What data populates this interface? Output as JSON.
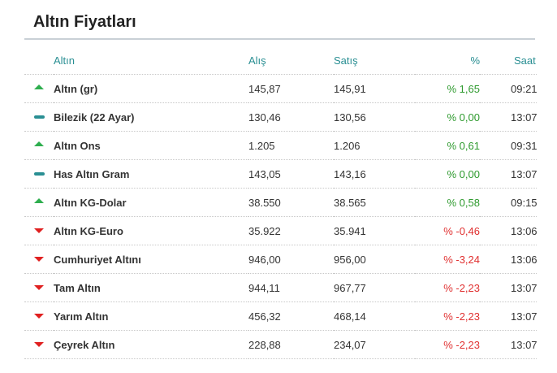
{
  "widget": {
    "title": "Altın Fiyatları"
  },
  "table": {
    "headers": {
      "name": "Altın",
      "buy": "Alış",
      "sell": "Satış",
      "pct": "%",
      "time": "Saat"
    },
    "rows": [
      {
        "trend": "up",
        "name": "Altın (gr)",
        "buy": "145,87",
        "sell": "145,91",
        "pct": "% 1,65",
        "time": "09:21"
      },
      {
        "trend": "flat",
        "name": "Bilezik (22 Ayar)",
        "buy": "130,46",
        "sell": "130,56",
        "pct": "% 0,00",
        "time": "13:07"
      },
      {
        "trend": "up",
        "name": "Altın Ons",
        "buy": "1.205",
        "sell": "1.206",
        "pct": "% 0,61",
        "time": "09:31"
      },
      {
        "trend": "flat",
        "name": "Has Altın Gram",
        "buy": "143,05",
        "sell": "143,16",
        "pct": "% 0,00",
        "time": "13:07"
      },
      {
        "trend": "up",
        "name": "Altın KG-Dolar",
        "buy": "38.550",
        "sell": "38.565",
        "pct": "% 0,58",
        "time": "09:15"
      },
      {
        "trend": "down",
        "name": "Altın KG-Euro",
        "buy": "35.922",
        "sell": "35.941",
        "pct": "% -0,46",
        "time": "13:06"
      },
      {
        "trend": "down",
        "name": "Cumhuriyet Altını",
        "buy": "946,00",
        "sell": "956,00",
        "pct": "% -3,24",
        "time": "13:06"
      },
      {
        "trend": "down",
        "name": "Tam Altın",
        "buy": "944,11",
        "sell": "967,77",
        "pct": "% -2,23",
        "time": "13:07"
      },
      {
        "trend": "down",
        "name": "Yarım Altın",
        "buy": "456,32",
        "sell": "468,14",
        "pct": "% -2,23",
        "time": "13:07"
      },
      {
        "trend": "down",
        "name": "Çeyrek Altın",
        "buy": "228,88",
        "sell": "234,07",
        "pct": "% -2,23",
        "time": "13:07"
      }
    ]
  },
  "colors": {
    "up": "#2eae4e",
    "down": "#e02020",
    "flat": "#2a8f93",
    "header": "#2a8f93"
  },
  "icons": {
    "up": "arrow-up-icon",
    "down": "arrow-down-icon",
    "flat": "dash-icon"
  }
}
